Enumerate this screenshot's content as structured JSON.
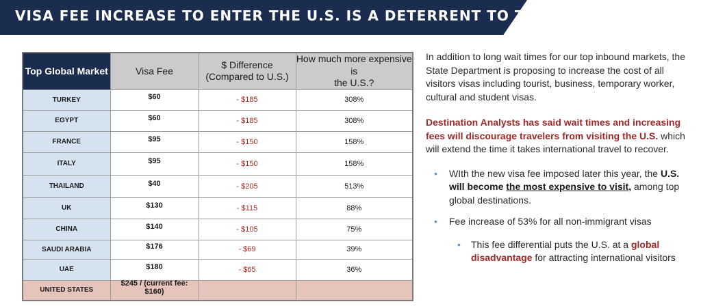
{
  "banner": {
    "title": "VISA FEE INCREASE TO ENTER THE U.S. IS A DETERRENT TO TRAVEL",
    "color": "#1b2d4f"
  },
  "table": {
    "headers": {
      "market": "Top Global Market",
      "fee": "Visa Fee",
      "diff_line1": "$ Difference",
      "diff_line2": "(Compared to U.S.)",
      "pct_line1": "How much more expensive is",
      "pct_line2": "the U.S.?"
    },
    "rows": [
      {
        "country": "TURKEY",
        "fee": "$60",
        "diff": "- $185",
        "pct": "308%"
      },
      {
        "country": "EGYPT",
        "fee": "$60",
        "diff": "- $185",
        "pct": "308%"
      },
      {
        "country": "FRANCE",
        "fee": "$95",
        "diff": "- $150",
        "pct": "158%"
      },
      {
        "country": "ITALY",
        "fee": "$95",
        "diff": "- $150",
        "pct": "158%"
      },
      {
        "country": "THAILAND",
        "fee": "$40",
        "diff": "- $205",
        "pct": "513%"
      },
      {
        "country": "UK",
        "fee": "$130",
        "diff": "- $115",
        "pct": "88%"
      },
      {
        "country": "CHINA",
        "fee": "$140",
        "diff": "- $105",
        "pct": "75%"
      },
      {
        "country": "SAUDI ARABIA",
        "fee": "$176",
        "diff": "- $69",
        "pct": "39%"
      },
      {
        "country": "UAE",
        "fee": "$180",
        "diff": "- $65",
        "pct": "36%"
      }
    ],
    "us_row": {
      "country": "UNITED STATES",
      "fee": "$245 / (current fee: $160)"
    },
    "colors": {
      "header_dark": "#1b2d4f",
      "country_cell": "#d5e3f0",
      "diff_text": "#b22222",
      "us_row": "#e6c4bc"
    }
  },
  "text": {
    "para1": "In addition to long wait times for our top inbound markets, the State Department is proposing to increase the cost of all visitors visas including tourist, business, temporary worker, cultural and student visas.",
    "para2_bold": "Destination Analysts has said wait times and increasing fees will discourage travelers from visiting the U.S.",
    "para2_rest": " which will extend the time it takes international travel to recover.",
    "bullet1_a": "WIth the new visa fee imposed later this year, the ",
    "bullet1_b": "U.S. will become ",
    "bullet1_c": "the most expensive to visit,",
    "bullet1_d": " among top global destinations.",
    "bullet2": "Fee increase of 53% for all non-immigrant visas",
    "bullet3_a": "This fee differential puts the U.S. at a ",
    "bullet3_b": "global disadvantage",
    "bullet3_c": " for attracting international visitors",
    "bullet_glyph": "•",
    "accent_red": "#a02828",
    "bullet_color": "#6f8fb5"
  }
}
